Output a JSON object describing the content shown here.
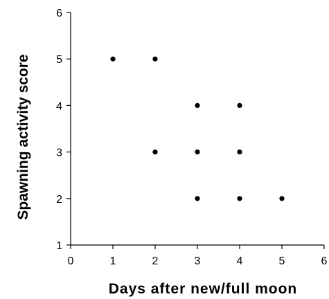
{
  "chart_data": {
    "type": "scatter",
    "xlabel": "Days after new/full moon",
    "ylabel": "Spawning activity score",
    "xlim": [
      0,
      6
    ],
    "ylim": [
      1,
      6
    ],
    "xticks": [
      "0",
      "1",
      "2",
      "3",
      "4",
      "5",
      "6"
    ],
    "yticks": [
      "1",
      "2",
      "3",
      "4",
      "5",
      "6"
    ],
    "grid": false,
    "points": [
      {
        "x": 1,
        "y": 5
      },
      {
        "x": 2,
        "y": 5
      },
      {
        "x": 2,
        "y": 3
      },
      {
        "x": 3,
        "y": 4
      },
      {
        "x": 3,
        "y": 3
      },
      {
        "x": 3,
        "y": 2
      },
      {
        "x": 4,
        "y": 4
      },
      {
        "x": 4,
        "y": 3
      },
      {
        "x": 4,
        "y": 2
      },
      {
        "x": 5,
        "y": 2
      }
    ],
    "point_color": "#000000"
  }
}
